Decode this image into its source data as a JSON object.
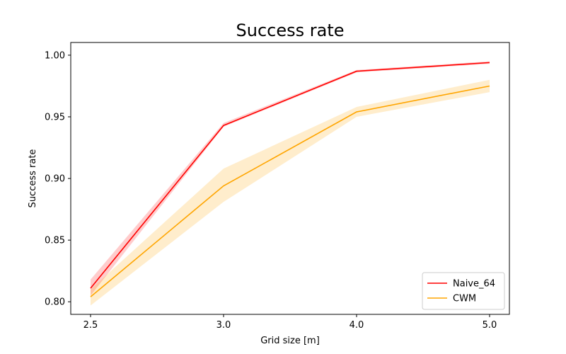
{
  "chart_data": {
    "type": "line",
    "title": "Success rate",
    "xlabel": "Grid size [m]",
    "ylabel": "Success rate",
    "categories": [
      "2.5",
      "3.0",
      "4.0",
      "5.0"
    ],
    "ylim": [
      0.7898,
      1.0103
    ],
    "yticks": [
      "0.80",
      "0.85",
      "0.90",
      "0.95",
      "1.00"
    ],
    "legend_position": "bottom-right",
    "grid": false,
    "series": [
      {
        "name": "Naive_64",
        "color": "#ff0000",
        "band_color": "#ff0000",
        "values": [
          0.811,
          0.943,
          0.987,
          0.994
        ],
        "lower": [
          0.805,
          0.942,
          0.986,
          0.993
        ],
        "upper": [
          0.818,
          0.945,
          0.988,
          0.995
        ]
      },
      {
        "name": "CWM",
        "color": "#ffa500",
        "band_color": "#ffa500",
        "values": [
          0.804,
          0.894,
          0.954,
          0.975
        ],
        "lower": [
          0.797,
          0.881,
          0.95,
          0.97
        ],
        "upper": [
          0.81,
          0.908,
          0.958,
          0.98
        ]
      }
    ]
  }
}
